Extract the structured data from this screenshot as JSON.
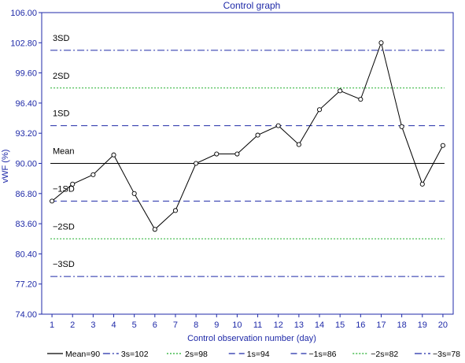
{
  "chart_data": {
    "type": "line",
    "title": "Control graph",
    "xlabel": "Control observation number (day)",
    "ylabel": "vWF (%)",
    "ylim": [
      74.0,
      106.0
    ],
    "xlim": [
      0.5,
      20.5
    ],
    "grid": false,
    "x": [
      1,
      2,
      3,
      4,
      5,
      6,
      7,
      8,
      9,
      10,
      11,
      12,
      13,
      14,
      15,
      16,
      17,
      18,
      19,
      20
    ],
    "x_ticks": [
      "1",
      "2",
      "3",
      "4",
      "5",
      "6",
      "7",
      "8",
      "9",
      "10",
      "11",
      "12",
      "13",
      "14",
      "15",
      "16",
      "17",
      "18",
      "19",
      "20"
    ],
    "y_ticks": [
      "74.00",
      "77.20",
      "80.40",
      "83.60",
      "86.80",
      "90.00",
      "93.20",
      "96.40",
      "99.60",
      "102.80",
      "106.00"
    ],
    "y_tick_values": [
      74.0,
      77.2,
      80.4,
      83.6,
      86.8,
      90.0,
      93.2,
      96.4,
      99.6,
      102.8,
      106.0
    ],
    "series": [
      {
        "values": [
          86.0,
          87.8,
          88.8,
          90.9,
          86.8,
          83.0,
          85.0,
          90.0,
          91.0,
          91.0,
          93.0,
          94.0,
          92.0,
          95.7,
          97.7,
          96.8,
          102.8,
          93.9,
          87.8,
          91.9
        ],
        "color": "#000000"
      }
    ],
    "reference_lines": [
      {
        "label": "3SD",
        "value": 102,
        "style": "dashdot",
        "color": "#1f2aa8"
      },
      {
        "label": "2SD",
        "value": 98,
        "style": "dotted",
        "color": "#1fae2a"
      },
      {
        "label": "1SD",
        "value": 94,
        "style": "dashed",
        "color": "#1f2aa8"
      },
      {
        "label": "Mean",
        "value": 90,
        "style": "solid",
        "color": "#000000"
      },
      {
        "label": "−1SD",
        "value": 86,
        "style": "dashed",
        "color": "#1f2aa8"
      },
      {
        "label": "−2SD",
        "value": 82,
        "style": "dotted",
        "color": "#1fae2a"
      },
      {
        "label": "−3SD",
        "value": 78,
        "style": "dashdot",
        "color": "#1f2aa8"
      }
    ],
    "legend_position": "bottom",
    "legend": [
      {
        "label": "Mean=90",
        "style": "solid",
        "color": "#000000"
      },
      {
        "label": "3s=102",
        "style": "dashdot",
        "color": "#1f2aa8"
      },
      {
        "label": "2s=98",
        "style": "dotted",
        "color": "#1fae2a"
      },
      {
        "label": "1s=94",
        "style": "dashed",
        "color": "#1f2aa8"
      },
      {
        "label": "−1s=86",
        "style": "dashed",
        "color": "#1f2aa8"
      },
      {
        "label": "−2s=82",
        "style": "dotted",
        "color": "#1fae2a"
      },
      {
        "label": "−3s=78",
        "style": "dashdot",
        "color": "#1f2aa8"
      }
    ]
  }
}
